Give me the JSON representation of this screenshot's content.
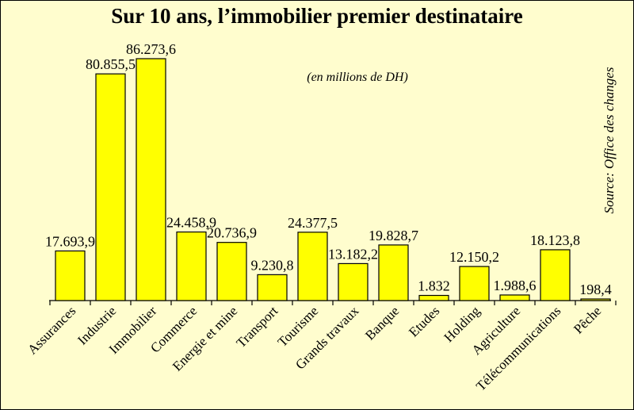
{
  "chart_data": {
    "type": "bar",
    "title": "Sur 10 ans, l’immobilier premier destinataire",
    "subtitle": "(en millions de DH)",
    "source": "Source: Office des changes",
    "categories": [
      "Assurances",
      "Industrie",
      "Immobilier",
      "Commerce",
      "Energie et mine",
      "Transport",
      "Tourisme",
      "Grands travaux",
      "Banque",
      "Etudes",
      "Holding",
      "Agriculture",
      "Télécommunications",
      "Pêche"
    ],
    "values": [
      17693.9,
      80855.5,
      86273.6,
      24458.9,
      20736.9,
      9230.8,
      24377.5,
      13182.2,
      19828.7,
      1832,
      12150.2,
      1988.6,
      18123.8,
      198.4
    ],
    "value_labels": [
      "17.693,9",
      "80.855,5",
      "86.273,6",
      "24.458,9",
      "20.736,9",
      "9.230,8",
      "24.377,5",
      "13.182,2",
      "19.828,7",
      "1.832",
      "12.150,2",
      "1.988,6",
      "18.123,8",
      "198,4"
    ],
    "ylim": [
      0,
      86273.6
    ],
    "grid": false,
    "legend": "none",
    "colors": {
      "bar_fill": "#ffff00",
      "bar_stroke": "#000000",
      "background": "#fffdce"
    }
  }
}
